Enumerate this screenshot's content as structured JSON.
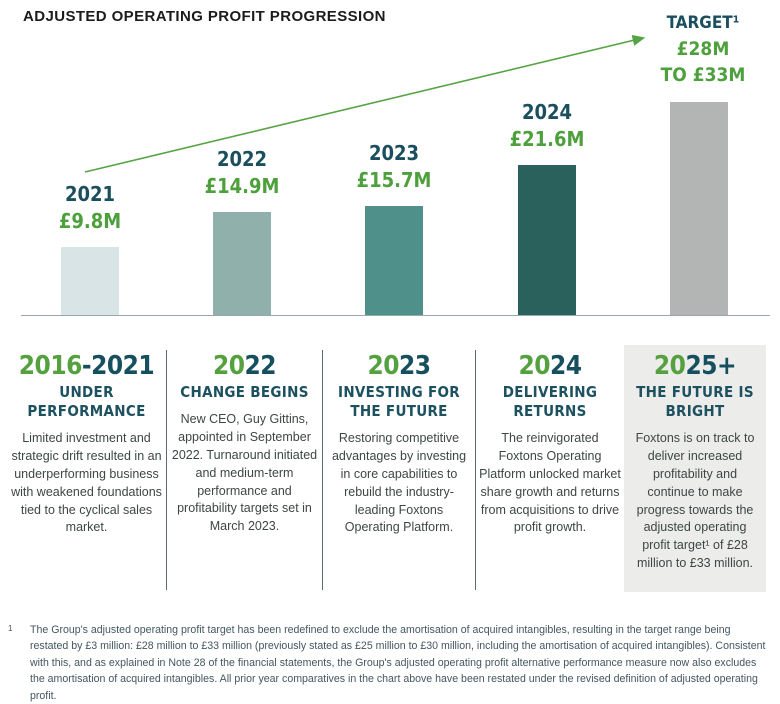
{
  "title": "ADJUSTED OPERATING PROFIT PROGRESSION",
  "target": {
    "label": "TARGET¹",
    "value_line1": "£28M",
    "value_line2": "TO £33M"
  },
  "chart_data": {
    "type": "bar",
    "title": "ADJUSTED OPERATING PROFIT PROGRESSION",
    "categories": [
      "2021",
      "2022",
      "2023",
      "2024",
      "TARGET"
    ],
    "values": [
      9.8,
      14.9,
      15.7,
      21.6,
      30.5
    ],
    "value_labels": [
      "£9.8M",
      "£14.9M",
      "£15.7M",
      "£21.6M",
      "£28M TO £33M"
    ],
    "target_range": [
      28,
      33
    ],
    "unit": "£M",
    "bar_colors": [
      "#d9e4e6",
      "#8fb0ab",
      "#4f908b",
      "#2a615d",
      "#b2b5b4"
    ],
    "ylim": [
      0,
      35
    ],
    "axes": "hidden, single baseline only",
    "annotation": "green trend arrow rising from 2021 bar toward TARGET label"
  },
  "columns": [
    {
      "year_green": "2016",
      "year_teal": "-2021",
      "heading": "UNDER PERFORMANCE",
      "body": "Limited investment and strategic drift resulted in an underperforming business with weakened foundations tied to the cyclical sales market."
    },
    {
      "year_green": "20",
      "year_teal": "22",
      "heading": "CHANGE BEGINS",
      "body": "New CEO, Guy Gittins, appointed in September 2022. Turnaround initiated and medium-term performance and profitability targets set in March 2023."
    },
    {
      "year_green": "20",
      "year_teal": "23",
      "heading": "INVESTING FOR THE FUTURE",
      "body": "Restoring competitive advantages by investing in core capabilities to rebuild the industry-leading Foxtons Operating Platform."
    },
    {
      "year_green": "20",
      "year_teal": "24",
      "heading": "DELIVERING RETURNS",
      "body": "The reinvigorated Foxtons Operating Platform unlocked market share growth and returns from acquisitions to drive profit growth."
    },
    {
      "year_green": "20",
      "year_teal": "25+",
      "heading": "THE FUTURE IS BRIGHT",
      "body": "Foxtons is on track to deliver increased profitability and continue to make progress towards the adjusted operating profit target¹ of £28 million to £33 million."
    }
  ],
  "footnote": {
    "marker": "1",
    "text": "The Group's adjusted operating profit target has been redefined to exclude the amortisation of acquired intangibles, resulting in the target range being restated by £3 million: £28 million to £33 million (previously stated as £25 million to £30 million, including the amortisation of acquired intangibles). Consistent with this, and as explained in Note 28 of the financial statements, the Group's adjusted operating profit alternative performance measure now also excludes the amortisation of acquired intangibles. All prior year comparatives in the chart above have been restated under the revised definition of adjusted operating profit."
  },
  "colors": {
    "accent_green": "#56a345",
    "teal_dark": "#1b4f5e",
    "value_green": "#4da03c",
    "highlight_box_gray": "#ececeb"
  }
}
